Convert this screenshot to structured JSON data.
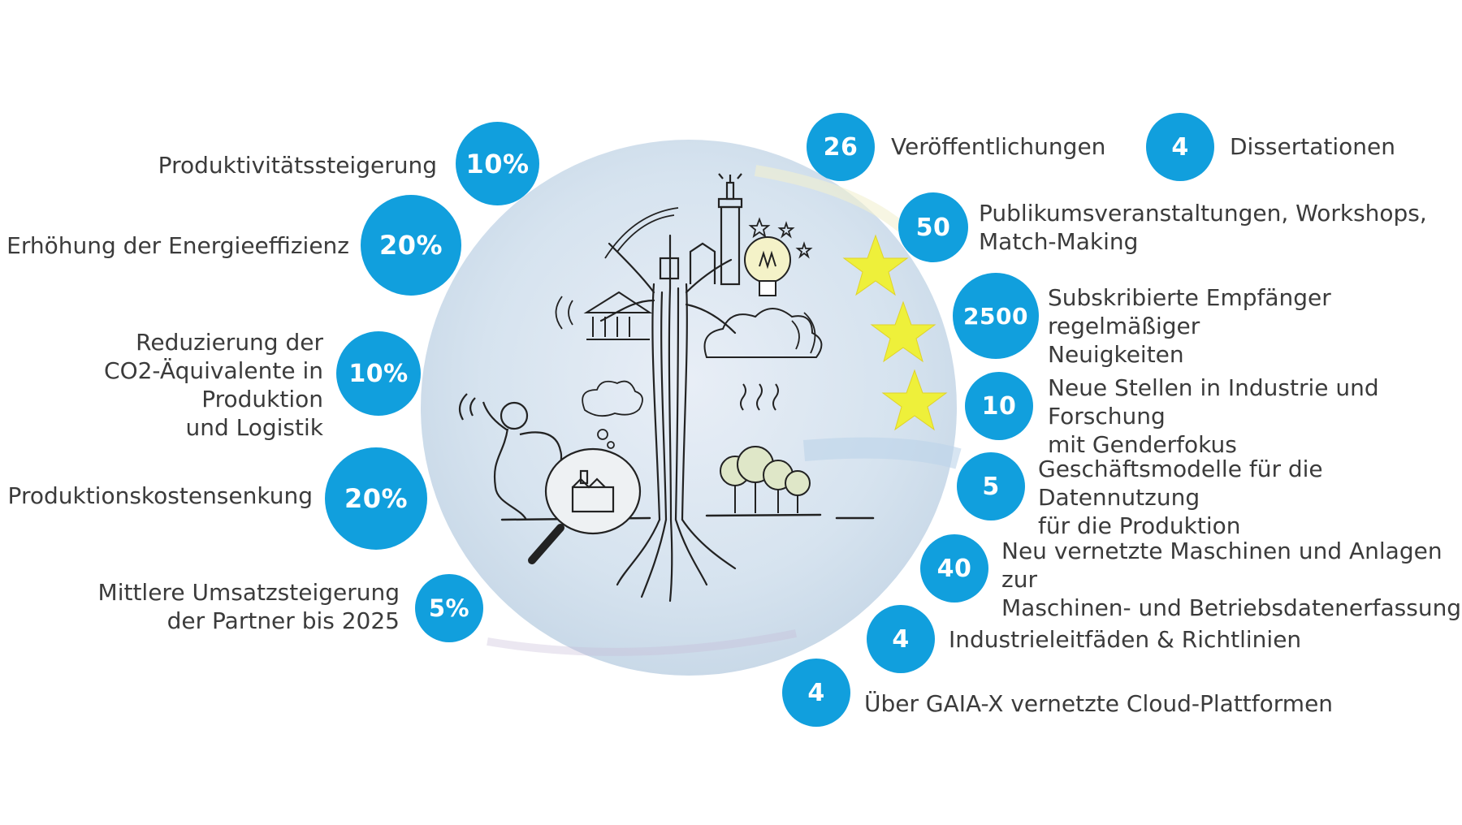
{
  "left_metrics": [
    {
      "value": "10%",
      "label": "Produktivitätssteigerung"
    },
    {
      "value": "20%",
      "label": "Erhöhung der Energieeffizienz"
    },
    {
      "value": "10%",
      "label": "Reduzierung der\nCO2-Äquivalente in Produktion\nund Logistik"
    },
    {
      "value": "20%",
      "label": "Produktionskostensenkung"
    },
    {
      "value": "5%",
      "label": "Mittlere Umsatzsteigerung\nder Partner bis 2025"
    }
  ],
  "right_metrics": [
    {
      "value": "26",
      "label": "Veröffentlichungen"
    },
    {
      "value": "4",
      "label": "Dissertationen"
    },
    {
      "value": "50",
      "label": "Publikumsveranstaltungen, Workshops,\nMatch-Making"
    },
    {
      "value": "2500",
      "label": "Subskribierte Empfänger regelmäßiger\nNeuigkeiten"
    },
    {
      "value": "10",
      "label": "Neue Stellen in Industrie und Forschung\nmit Genderfokus"
    },
    {
      "value": "5",
      "label": "Geschäftsmodelle für die Datennutzung\nfür die Produktion"
    },
    {
      "value": "40",
      "label": "Neu vernetzte Maschinen und Anlagen zur\nMaschinen- und Betriebsdatenerfassung"
    },
    {
      "value": "4",
      "label": "Industrieleitfäden & Richtlinien"
    },
    {
      "value": "4",
      "label": "Über GAIA-X vernetzte Cloud-Plattformen"
    }
  ],
  "colors": {
    "badge": "#119fdd",
    "circle": "#d5e4f0",
    "star": "#eef03a",
    "text": "#3b3b3b"
  },
  "icons": [
    "tree-sketch-icon",
    "magnifier-sketch-icon",
    "person-sketch-icon",
    "lightbulb-sketch-icon",
    "cloud-sketch-icon",
    "castle-sketch-icon",
    "forest-sketch-icon",
    "star-icon"
  ]
}
